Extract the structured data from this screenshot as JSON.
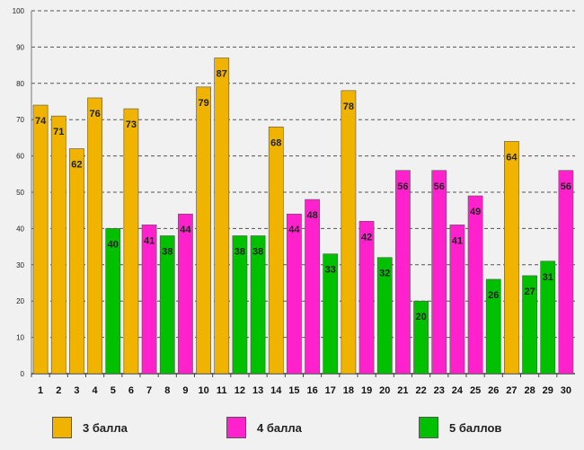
{
  "chart_data": {
    "type": "bar",
    "title": "",
    "xlabel": "",
    "ylabel": "",
    "ylim": [
      0,
      100
    ],
    "yticks": [
      0,
      10,
      20,
      30,
      40,
      50,
      60,
      70,
      80,
      90,
      100
    ],
    "categories": [
      "1",
      "2",
      "3",
      "4",
      "5",
      "6",
      "7",
      "8",
      "9",
      "10",
      "11",
      "12",
      "13",
      "14",
      "15",
      "16",
      "17",
      "18",
      "19",
      "20",
      "21",
      "22",
      "23",
      "24",
      "25",
      "26",
      "27",
      "28",
      "29",
      "30"
    ],
    "values": [
      74,
      71,
      62,
      76,
      40,
      73,
      41,
      38,
      44,
      79,
      87,
      38,
      38,
      68,
      44,
      48,
      33,
      78,
      42,
      32,
      56,
      20,
      56,
      41,
      49,
      26,
      64,
      27,
      31,
      56
    ],
    "groups": [
      "3 балла",
      "3 балла",
      "3 балла",
      "3 балла",
      "5 баллов",
      "3 балла",
      "4 балла",
      "5 баллов",
      "4 балла",
      "3 балла",
      "3 балла",
      "5 баллов",
      "5 баллов",
      "3 балла",
      "4 балла",
      "4 балла",
      "5 баллов",
      "3 балла",
      "4 балла",
      "5 баллов",
      "4 балла",
      "5 баллов",
      "4 балла",
      "4 балла",
      "4 балла",
      "5 баллов",
      "3 балла",
      "5 баллов",
      "5 баллов",
      "4 балла"
    ],
    "legend": [
      {
        "label": "3 балла",
        "color": "#f0b400"
      },
      {
        "label": "4 балла",
        "color": "#ff22cc"
      },
      {
        "label": "5 баллов",
        "color": "#00c000"
      }
    ],
    "gridlines": "dashed-horizontal"
  }
}
